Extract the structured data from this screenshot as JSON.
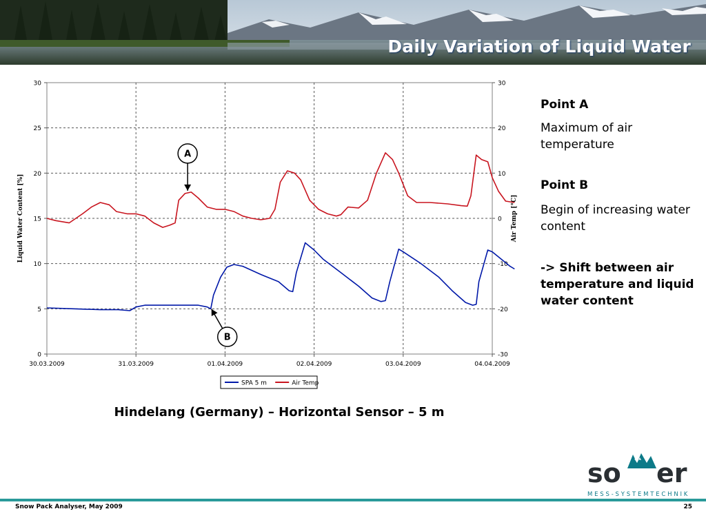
{
  "slide": {
    "title": "Daily Variation of Liquid Water",
    "caption": "Hindelang (Germany) – Horizontal Sensor – 5 m",
    "footer_left": "Snow Pack Analyser, May 2009",
    "page_number": "25",
    "accent_color": "#2a9a9a"
  },
  "notes": {
    "point_a_title": "Point A",
    "point_a_text": "Maximum of air temperature",
    "point_b_title": "Point B",
    "point_b_text": "Begin of increasing water content",
    "conclusion": "-> Shift between air temperature and liquid water content"
  },
  "logo": {
    "brand": "sommer",
    "tagline": "MESS-SYSTEMTECHNIK"
  },
  "chart_data": {
    "type": "line",
    "x_labels": [
      "30.03.2009",
      "31.03.2009",
      "01.04.2009",
      "02.04.2009",
      "03.04.2009",
      "04.04.2009"
    ],
    "y_left": {
      "label": "Liquid Water Content [%]",
      "range": [
        0,
        30
      ],
      "ticks": [
        "0",
        "5",
        "10",
        "15",
        "20",
        "25",
        "30"
      ]
    },
    "y_right": {
      "label": "Air Temp [°C]",
      "range": [
        -30,
        30
      ],
      "ticks": [
        "-30",
        "-20",
        "-10",
        "0",
        "10",
        "20",
        "30"
      ]
    },
    "grid": "dashed",
    "legend_position": "bottom",
    "annotations": [
      {
        "label": "A",
        "x": 1.58,
        "y": 17.9
      },
      {
        "label": "B",
        "x": 1.84,
        "y": 5.1
      }
    ],
    "series": [
      {
        "name": "SPA 5 m",
        "axis": "left",
        "color": "#0018a8",
        "points": [
          [
            0.0,
            5.1
          ],
          [
            0.3,
            5.0
          ],
          [
            0.6,
            4.9
          ],
          [
            0.8,
            4.9
          ],
          [
            0.93,
            4.8
          ],
          [
            1.0,
            5.2
          ],
          [
            1.1,
            5.4
          ],
          [
            1.3,
            5.4
          ],
          [
            1.5,
            5.4
          ],
          [
            1.7,
            5.4
          ],
          [
            1.8,
            5.2
          ],
          [
            1.84,
            5.0
          ],
          [
            1.87,
            6.5
          ],
          [
            1.95,
            8.5
          ],
          [
            2.02,
            9.6
          ],
          [
            2.1,
            9.9
          ],
          [
            2.2,
            9.7
          ],
          [
            2.4,
            8.8
          ],
          [
            2.6,
            8.0
          ],
          [
            2.72,
            7.0
          ],
          [
            2.76,
            6.9
          ],
          [
            2.8,
            9.0
          ],
          [
            2.9,
            12.3
          ],
          [
            3.0,
            11.5
          ],
          [
            3.1,
            10.5
          ],
          [
            3.3,
            9.0
          ],
          [
            3.5,
            7.5
          ],
          [
            3.65,
            6.2
          ],
          [
            3.75,
            5.8
          ],
          [
            3.8,
            5.9
          ],
          [
            3.85,
            8.0
          ],
          [
            3.95,
            11.6
          ],
          [
            4.0,
            11.3
          ],
          [
            4.2,
            10.0
          ],
          [
            4.4,
            8.5
          ],
          [
            4.55,
            7.0
          ],
          [
            4.7,
            5.7
          ],
          [
            4.78,
            5.4
          ],
          [
            4.82,
            5.5
          ],
          [
            4.85,
            8.0
          ],
          [
            4.95,
            11.5
          ],
          [
            5.0,
            11.3
          ],
          [
            5.1,
            10.5
          ],
          [
            5.2,
            9.7
          ],
          [
            5.25,
            9.4
          ]
        ]
      },
      {
        "name": "Air Temp",
        "axis": "right",
        "color": "#c8141e",
        "points": [
          [
            0.0,
            0.0
          ],
          [
            0.1,
            -0.5
          ],
          [
            0.25,
            -1.0
          ],
          [
            0.4,
            1.0
          ],
          [
            0.5,
            2.5
          ],
          [
            0.6,
            3.5
          ],
          [
            0.7,
            3.0
          ],
          [
            0.78,
            1.5
          ],
          [
            0.9,
            1.0
          ],
          [
            1.0,
            1.0
          ],
          [
            1.1,
            0.5
          ],
          [
            1.2,
            -1.0
          ],
          [
            1.3,
            -2.0
          ],
          [
            1.38,
            -1.5
          ],
          [
            1.44,
            -1.0
          ],
          [
            1.48,
            4.0
          ],
          [
            1.55,
            5.5
          ],
          [
            1.62,
            5.8
          ],
          [
            1.7,
            4.5
          ],
          [
            1.8,
            2.5
          ],
          [
            1.9,
            2.0
          ],
          [
            2.0,
            2.0
          ],
          [
            2.1,
            1.5
          ],
          [
            2.2,
            0.5
          ],
          [
            2.3,
            0.0
          ],
          [
            2.4,
            -0.3
          ],
          [
            2.5,
            0.0
          ],
          [
            2.56,
            2.0
          ],
          [
            2.62,
            8.0
          ],
          [
            2.7,
            10.5
          ],
          [
            2.78,
            10.0
          ],
          [
            2.85,
            8.5
          ],
          [
            2.95,
            4.0
          ],
          [
            3.05,
            2.0
          ],
          [
            3.15,
            1.0
          ],
          [
            3.25,
            0.5
          ],
          [
            3.3,
            0.8
          ],
          [
            3.38,
            2.5
          ],
          [
            3.5,
            2.3
          ],
          [
            3.6,
            4.0
          ],
          [
            3.7,
            10.0
          ],
          [
            3.8,
            14.5
          ],
          [
            3.88,
            13.0
          ],
          [
            3.95,
            10.0
          ],
          [
            4.05,
            5.0
          ],
          [
            4.15,
            3.5
          ],
          [
            4.3,
            3.5
          ],
          [
            4.5,
            3.2
          ],
          [
            4.65,
            2.8
          ],
          [
            4.72,
            2.7
          ],
          [
            4.76,
            5.0
          ],
          [
            4.82,
            14.0
          ],
          [
            4.88,
            13.0
          ],
          [
            4.95,
            12.5
          ],
          [
            5.0,
            9.0
          ],
          [
            5.07,
            6.0
          ],
          [
            5.15,
            3.8
          ],
          [
            5.25,
            3.5
          ]
        ]
      }
    ]
  }
}
